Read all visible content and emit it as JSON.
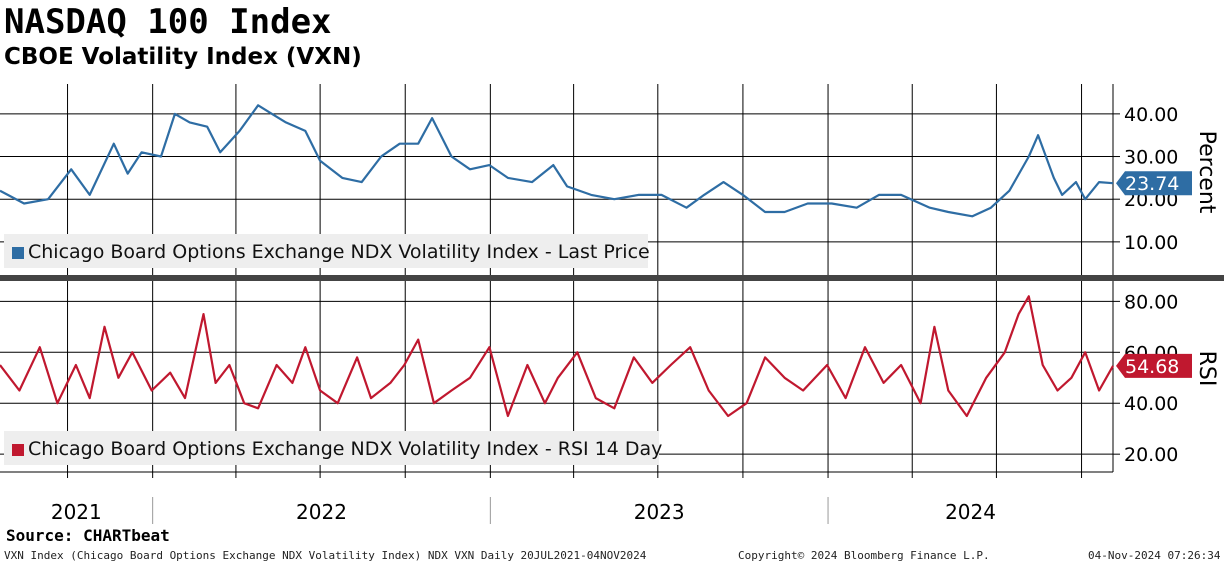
{
  "header": {
    "title": "NASDAQ 100 Index",
    "subtitle": "CBOE Volatility Index (VXN)"
  },
  "source": "Source: CHARTbeat",
  "footer": {
    "left": "VXN Index (Chicago Board Options Exchange NDX Volatility Index) NDX VXN  Daily 20JUL2021-04NOV2024",
    "center": "Copyright© 2024 Bloomberg Finance L.P.",
    "right": "04-Nov-2024 07:26:34"
  },
  "colors": {
    "price": "#2e6da4",
    "rsi": "#c0182f",
    "grid": "#000000",
    "legend_bg": "#eeeeee",
    "divider": "#444444"
  },
  "chart_data": [
    {
      "type": "line",
      "panel": "upper",
      "axis_label": "Percent",
      "ylim": [
        2,
        47
      ],
      "yticks": [
        10,
        20,
        30,
        40
      ],
      "ytick_labels": [
        "10.00",
        "20.00",
        "30.00",
        "40.00"
      ],
      "last_value_label": "23.74",
      "legend": "Chicago Board Options Exchange NDX Volatility Index - Last Price",
      "series": [
        {
          "name": "Chicago Board Options Exchange NDX Volatility Index - Last Price",
          "x": [
            "2021-07-20",
            "2021-08-15",
            "2021-09-10",
            "2021-10-05",
            "2021-10-25",
            "2021-11-20",
            "2021-12-05",
            "2021-12-20",
            "2022-01-10",
            "2022-01-25",
            "2022-02-10",
            "2022-03-01",
            "2022-03-15",
            "2022-04-05",
            "2022-04-25",
            "2022-05-10",
            "2022-05-25",
            "2022-06-15",
            "2022-07-01",
            "2022-07-25",
            "2022-08-15",
            "2022-09-05",
            "2022-09-25",
            "2022-10-15",
            "2022-10-30",
            "2022-11-20",
            "2022-12-10",
            "2022-12-31",
            "2023-01-20",
            "2023-02-15",
            "2023-03-10",
            "2023-03-25",
            "2023-04-20",
            "2023-05-15",
            "2023-06-10",
            "2023-07-05",
            "2023-08-01",
            "2023-08-20",
            "2023-09-10",
            "2023-10-01",
            "2023-10-25",
            "2023-11-15",
            "2023-12-10",
            "2024-01-05",
            "2024-02-01",
            "2024-02-25",
            "2024-03-20",
            "2024-04-20",
            "2024-05-10",
            "2024-06-05",
            "2024-06-25",
            "2024-07-15",
            "2024-08-05",
            "2024-08-15",
            "2024-09-01",
            "2024-09-10",
            "2024-09-25",
            "2024-10-05",
            "2024-10-20",
            "2024-11-04"
          ],
          "values": [
            22,
            19,
            20,
            27,
            21,
            33,
            26,
            31,
            30,
            40,
            38,
            37,
            31,
            36,
            42,
            40,
            38,
            36,
            29,
            25,
            24,
            30,
            33,
            33,
            39,
            30,
            27,
            28,
            25,
            24,
            28,
            23,
            21,
            20,
            21,
            21,
            18,
            21,
            24,
            21,
            17,
            17,
            19,
            19,
            18,
            21,
            21,
            18,
            17,
            16,
            18,
            22,
            30,
            35,
            25,
            21,
            24,
            20,
            24,
            23.74
          ]
        }
      ]
    },
    {
      "type": "line",
      "panel": "lower",
      "axis_label": "RSI",
      "ylim": [
        13,
        88
      ],
      "yticks": [
        20,
        40,
        60,
        80
      ],
      "ytick_labels": [
        "20.00",
        "40.00",
        "60.00",
        "80.00"
      ],
      "last_value_label": "54.68",
      "legend": "Chicago Board Options Exchange NDX Volatility Index - RSI 14 Day",
      "series": [
        {
          "name": "Chicago Board Options Exchange NDX Volatility Index - RSI 14 Day",
          "x": [
            "2021-07-20",
            "2021-08-10",
            "2021-09-01",
            "2021-09-20",
            "2021-10-10",
            "2021-10-25",
            "2021-11-10",
            "2021-11-25",
            "2021-12-10",
            "2021-12-31",
            "2022-01-20",
            "2022-02-05",
            "2022-02-25",
            "2022-03-10",
            "2022-03-25",
            "2022-04-10",
            "2022-04-25",
            "2022-05-15",
            "2022-06-01",
            "2022-06-15",
            "2022-07-01",
            "2022-07-20",
            "2022-08-10",
            "2022-08-25",
            "2022-09-15",
            "2022-09-30",
            "2022-10-15",
            "2022-11-01",
            "2022-11-20",
            "2022-12-10",
            "2022-12-31",
            "2023-01-20",
            "2023-02-10",
            "2023-03-01",
            "2023-03-15",
            "2023-04-05",
            "2023-04-25",
            "2023-05-15",
            "2023-06-05",
            "2023-06-25",
            "2023-07-15",
            "2023-08-05",
            "2023-08-25",
            "2023-09-15",
            "2023-10-05",
            "2023-10-25",
            "2023-11-15",
            "2023-12-05",
            "2023-12-31",
            "2024-01-20",
            "2024-02-10",
            "2024-03-01",
            "2024-03-20",
            "2024-04-10",
            "2024-04-25",
            "2024-05-10",
            "2024-05-30",
            "2024-06-20",
            "2024-07-10",
            "2024-07-25",
            "2024-08-05",
            "2024-08-20",
            "2024-09-05",
            "2024-09-20",
            "2024-10-05",
            "2024-10-20",
            "2024-11-04"
          ],
          "values": [
            55,
            45,
            62,
            40,
            55,
            42,
            70,
            50,
            60,
            45,
            52,
            42,
            75,
            48,
            55,
            40,
            38,
            55,
            48,
            62,
            45,
            40,
            58,
            42,
            48,
            55,
            65,
            40,
            45,
            50,
            62,
            35,
            55,
            40,
            50,
            60,
            42,
            38,
            58,
            48,
            55,
            62,
            45,
            35,
            40,
            58,
            50,
            45,
            55,
            42,
            62,
            48,
            55,
            40,
            70,
            45,
            35,
            50,
            60,
            75,
            82,
            55,
            45,
            50,
            60,
            45,
            54.68
          ]
        }
      ]
    }
  ],
  "xaxis": {
    "labels": [
      "2021",
      "2022",
      "2023",
      "2024"
    ],
    "start": "2021-07-20",
    "end": "2024-11-04"
  }
}
